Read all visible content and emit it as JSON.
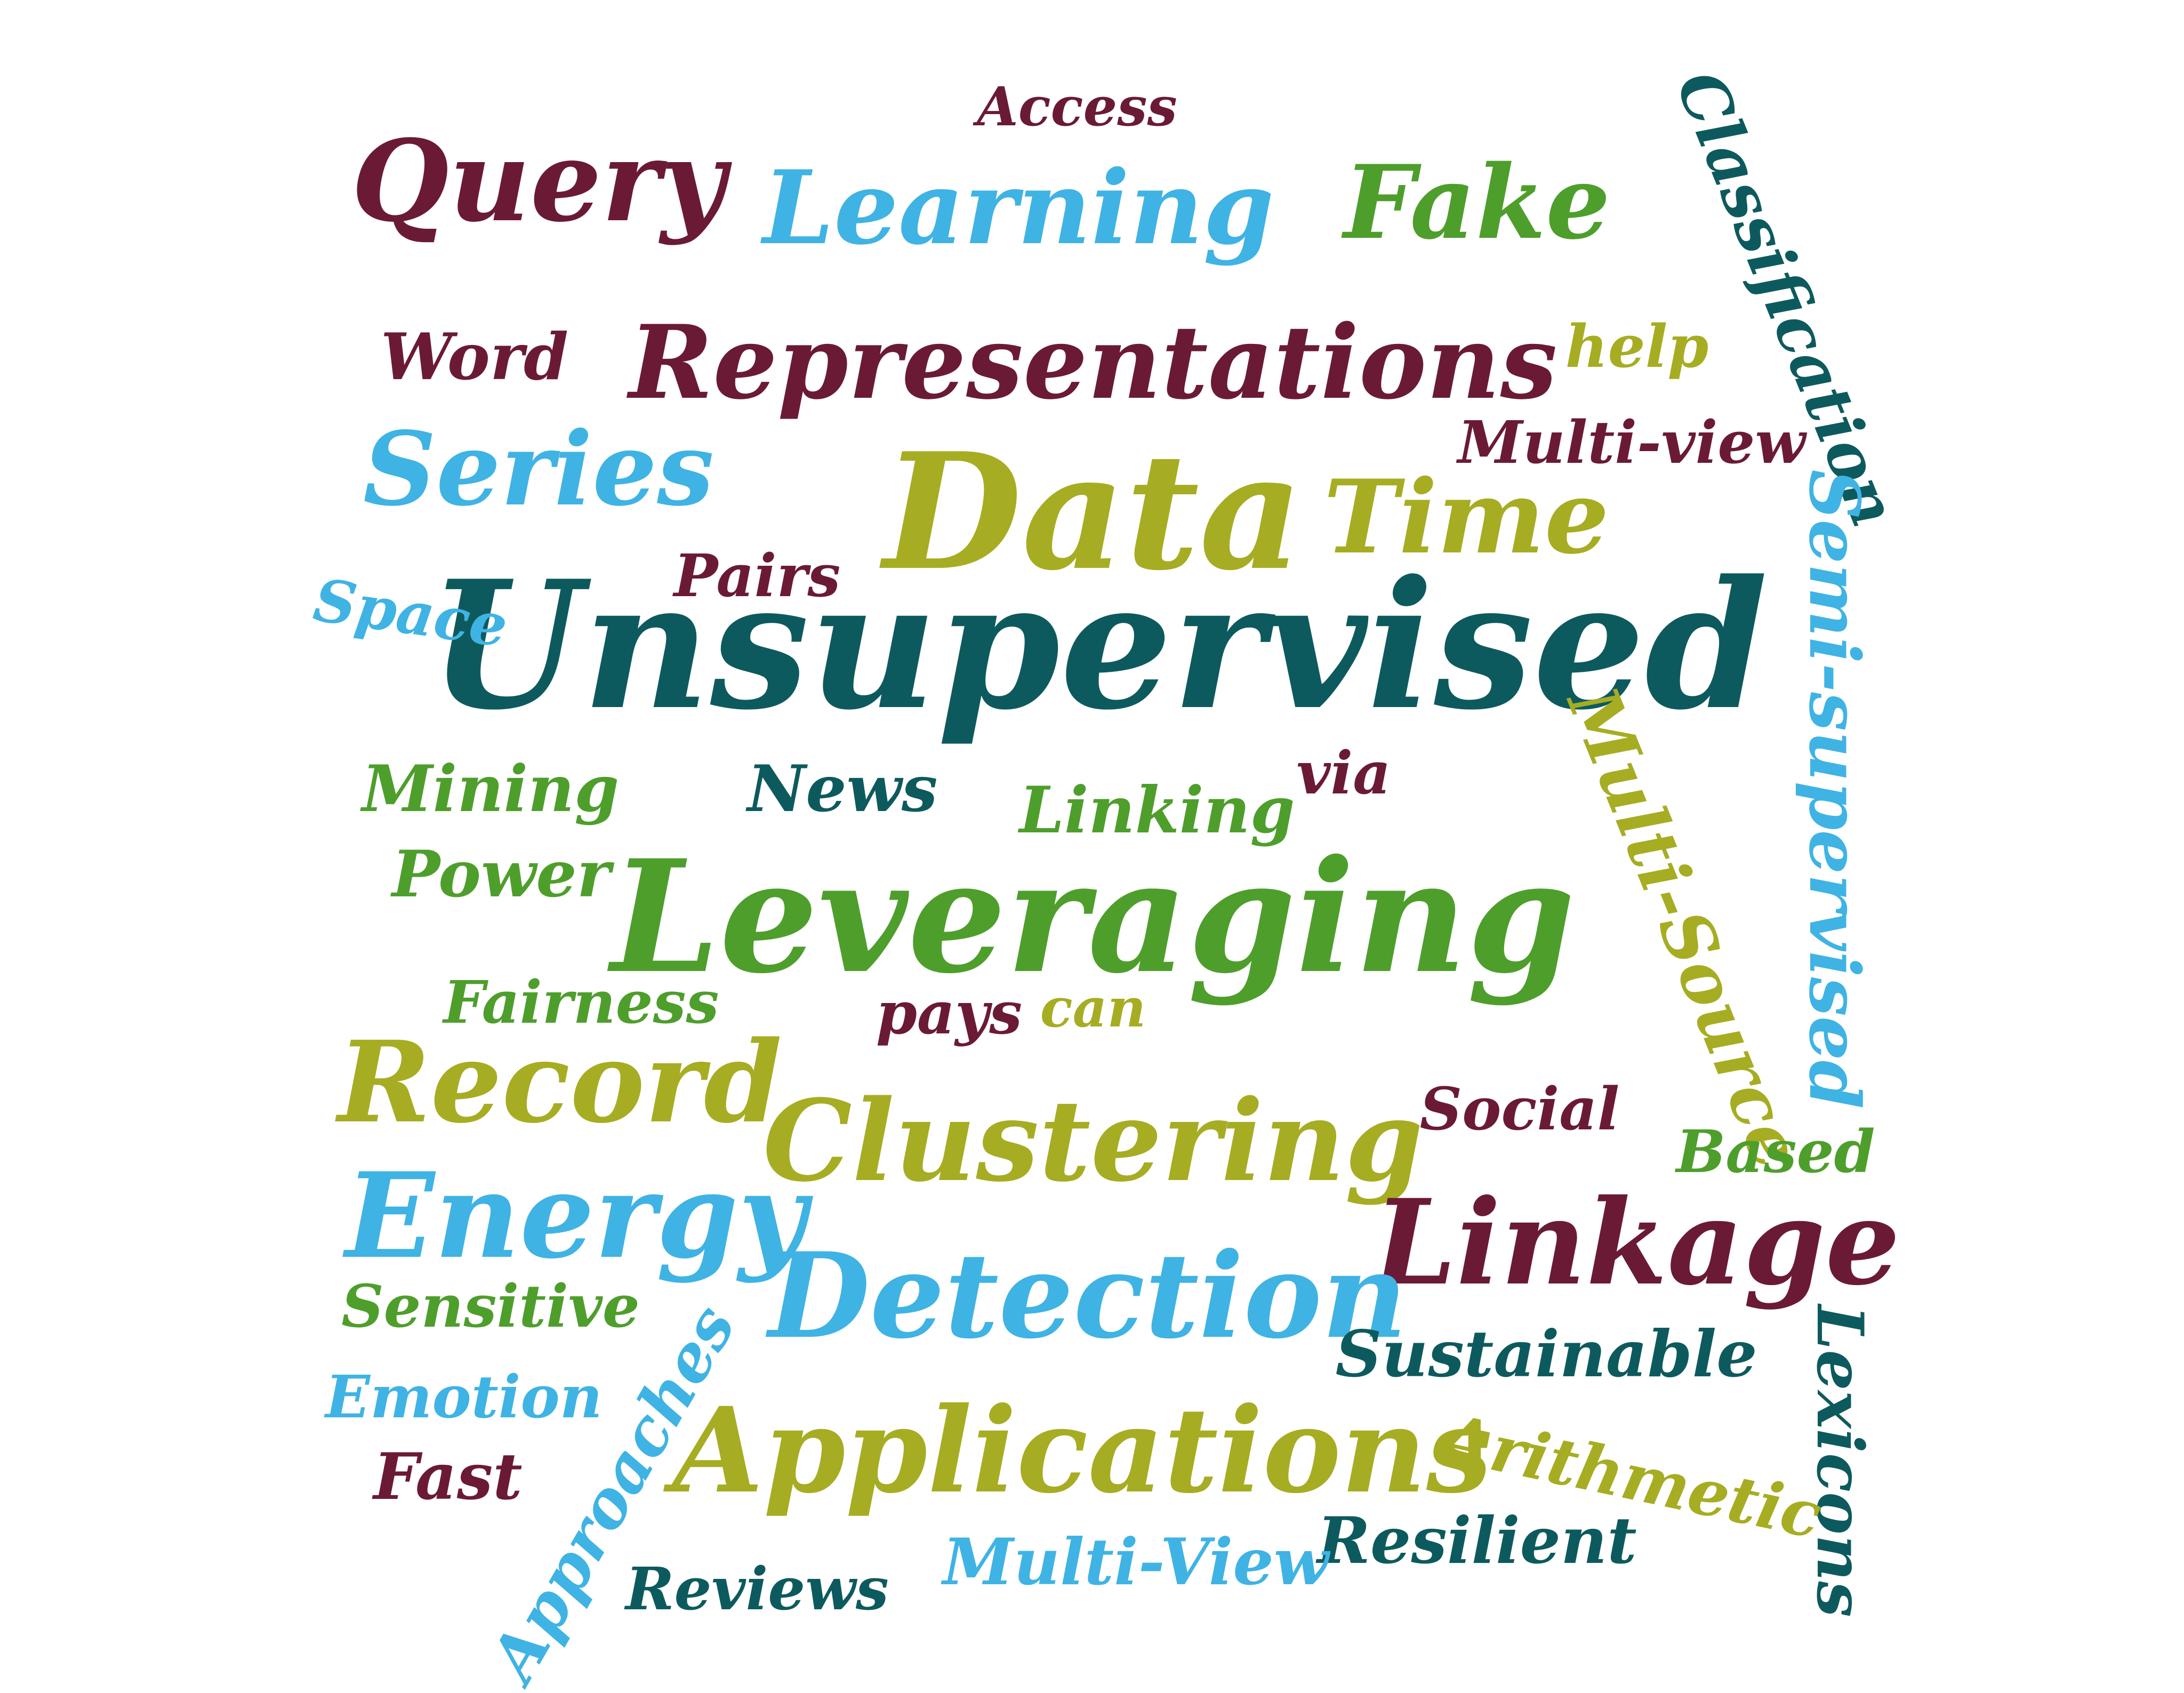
{
  "palette": {
    "maroon": "#6b1a35",
    "sky": "#3fb3e4",
    "green": "#4e9e2c",
    "olive": "#a6ad22",
    "teal": "#0d5a5e"
  },
  "words": [
    "Unsupervised",
    "Leveraging",
    "Data",
    "Representations",
    "Learning",
    "Query",
    "Fake",
    "Time",
    "Series",
    "Access",
    "Classification",
    "Word",
    "help",
    "Multi-view",
    "Pairs",
    "Space",
    "Semi-supervised",
    "Mining",
    "News",
    "via",
    "Linking",
    "Multi-Source",
    "Power",
    "Fairness",
    "pays",
    "can",
    "Record",
    "Clustering",
    "Social",
    "Based",
    "Energy",
    "Linkage",
    "Detection",
    "Sensitive",
    "Sustainable",
    "Emotion",
    "Lexicons",
    "Applications",
    "Approaches",
    "Arithmetic",
    "Fast",
    "Resilient",
    "Multi-View",
    "Reviews"
  ]
}
